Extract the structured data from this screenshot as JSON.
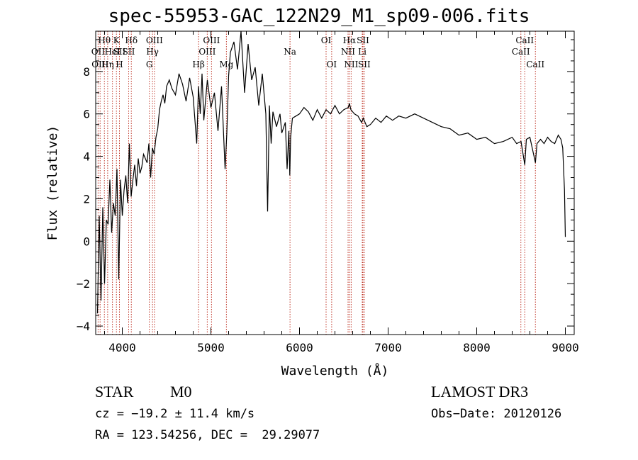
{
  "chart_data": {
    "type": "line",
    "title": "spec-55953-GAC_122N29_M1_sp09-006.fits",
    "xlabel": "Wavelength (Å)",
    "ylabel": "Flux (relative)",
    "xlim": [
      3700,
      9100
    ],
    "ylim": [
      -4.4,
      9.9
    ],
    "x_ticks": [
      4000,
      5000,
      6000,
      7000,
      8000,
      9000
    ],
    "y_ticks": [
      -4,
      -2,
      0,
      2,
      4,
      6,
      8
    ],
    "grid": false,
    "series": [
      {
        "name": "",
        "color": "#000000",
        "x": [
          3720,
          3740,
          3760,
          3780,
          3800,
          3820,
          3840,
          3860,
          3880,
          3900,
          3920,
          3940,
          3960,
          3980,
          4000,
          4020,
          4040,
          4060,
          4080,
          4100,
          4120,
          4140,
          4160,
          4180,
          4200,
          4220,
          4240,
          4260,
          4280,
          4300,
          4320,
          4340,
          4360,
          4380,
          4400,
          4420,
          4440,
          4460,
          4480,
          4500,
          4530,
          4560,
          4600,
          4640,
          4680,
          4720,
          4760,
          4800,
          4840,
          4860,
          4880,
          4900,
          4920,
          4960,
          5000,
          5040,
          5080,
          5120,
          5160,
          5180,
          5200,
          5220,
          5260,
          5300,
          5340,
          5380,
          5420,
          5460,
          5500,
          5540,
          5580,
          5620,
          5640,
          5660,
          5680,
          5700,
          5740,
          5780,
          5800,
          5840,
          5860,
          5880,
          5890,
          5900,
          5920,
          5960,
          6000,
          6050,
          6100,
          6150,
          6200,
          6250,
          6300,
          6350,
          6400,
          6450,
          6500,
          6550,
          6563,
          6580,
          6620,
          6660,
          6700,
          6720,
          6760,
          6800,
          6860,
          6920,
          6980,
          7050,
          7120,
          7200,
          7300,
          7400,
          7500,
          7600,
          7700,
          7800,
          7900,
          8000,
          8100,
          8200,
          8300,
          8400,
          8450,
          8500,
          8542,
          8560,
          8600,
          8662,
          8680,
          8720,
          8760,
          8800,
          8840,
          8880,
          8920,
          8950,
          8970,
          8990,
          9000
        ],
        "y": [
          -3.4,
          1.2,
          -2.8,
          1.6,
          -2.0,
          1.0,
          0.8,
          2.9,
          0.4,
          1.8,
          1.2,
          3.4,
          -1.8,
          2.9,
          1.2,
          2.4,
          3.1,
          1.8,
          4.6,
          2.1,
          2.9,
          3.6,
          2.6,
          3.9,
          3.2,
          3.5,
          4.1,
          3.9,
          3.7,
          4.6,
          3.0,
          4.4,
          4.1,
          4.9,
          5.3,
          6.2,
          6.6,
          6.9,
          6.5,
          7.3,
          7.6,
          7.2,
          6.9,
          7.9,
          7.4,
          6.6,
          7.7,
          6.8,
          4.6,
          7.3,
          6.0,
          7.9,
          5.7,
          7.6,
          6.3,
          7.0,
          5.2,
          7.3,
          3.4,
          5.1,
          7.8,
          8.9,
          9.4,
          8.1,
          9.9,
          7.0,
          9.3,
          7.6,
          8.2,
          6.4,
          7.9,
          6.0,
          1.4,
          6.4,
          4.6,
          6.1,
          5.4,
          6.0,
          5.1,
          5.6,
          3.4,
          5.2,
          3.1,
          4.9,
          5.8,
          5.9,
          6.0,
          6.3,
          6.1,
          5.7,
          6.2,
          5.8,
          6.2,
          6.0,
          6.4,
          6.0,
          6.2,
          6.3,
          6.5,
          6.2,
          6.0,
          5.9,
          5.6,
          5.8,
          5.4,
          5.5,
          5.8,
          5.6,
          5.9,
          5.7,
          5.9,
          5.8,
          6.0,
          5.8,
          5.6,
          5.4,
          5.3,
          5.0,
          5.1,
          4.8,
          4.9,
          4.6,
          4.7,
          4.9,
          4.6,
          4.7,
          3.6,
          4.8,
          4.9,
          3.7,
          4.6,
          4.8,
          4.6,
          4.9,
          4.7,
          4.6,
          5.0,
          4.8,
          4.4,
          2.4,
          0.2
        ]
      }
    ],
    "lines": [
      {
        "label": "Hθ",
        "x": 3798,
        "row": 1
      },
      {
        "label": "OII",
        "x": 3727,
        "row": 2
      },
      {
        "label": "OIII",
        "x": 3750,
        "row": 3
      },
      {
        "label": "Hη",
        "x": 3835,
        "row": 3
      },
      {
        "label": "HeI",
        "x": 3889,
        "row": 2
      },
      {
        "label": "K",
        "x": 3934,
        "row": 1
      },
      {
        "label": "SII",
        "x": 3968,
        "row": 2
      },
      {
        "label": "H",
        "x": 3968,
        "row": 3
      },
      {
        "label": "Hδ",
        "x": 4102,
        "row": 1
      },
      {
        "label": "SII",
        "x": 4072,
        "row": 2
      },
      {
        "label": "OIII",
        "x": 4363,
        "row": 1
      },
      {
        "label": "Hγ",
        "x": 4341,
        "row": 2
      },
      {
        "label": "G",
        "x": 4305,
        "row": 3
      },
      {
        "label": "Hβ",
        "x": 4861,
        "row": 3
      },
      {
        "label": "OIII",
        "x": 5007,
        "row": 1
      },
      {
        "label": "OIII",
        "x": 4959,
        "row": 2
      },
      {
        "label": "Mg",
        "x": 5175,
        "row": 3
      },
      {
        "label": "Na",
        "x": 5893,
        "row": 2
      },
      {
        "label": "OI",
        "x": 6300,
        "row": 1
      },
      {
        "label": "OI",
        "x": 6363,
        "row": 3
      },
      {
        "label": "Hα",
        "x": 6563,
        "row": 1
      },
      {
        "label": "NII",
        "x": 6548,
        "row": 2
      },
      {
        "label": "NII",
        "x": 6583,
        "row": 3
      },
      {
        "label": "SII",
        "x": 6716,
        "row": 1
      },
      {
        "label": "Li",
        "x": 6708,
        "row": 2
      },
      {
        "label": "SII",
        "x": 6731,
        "row": 3
      },
      {
        "label": "CaII",
        "x": 8542,
        "row": 1
      },
      {
        "label": "CaII",
        "x": 8498,
        "row": 2
      },
      {
        "label": "CaII",
        "x": 8662,
        "row": 3
      }
    ]
  },
  "footer": {
    "object_class": "STAR",
    "subclass": "M0",
    "cz": "cz = −19.2 ± 11.4 km/s",
    "coords": "RA = 123.54256, DEC =  29.29077",
    "survey": "LAMOST DR3",
    "obs_date": "Obs−Date: 20120126"
  }
}
